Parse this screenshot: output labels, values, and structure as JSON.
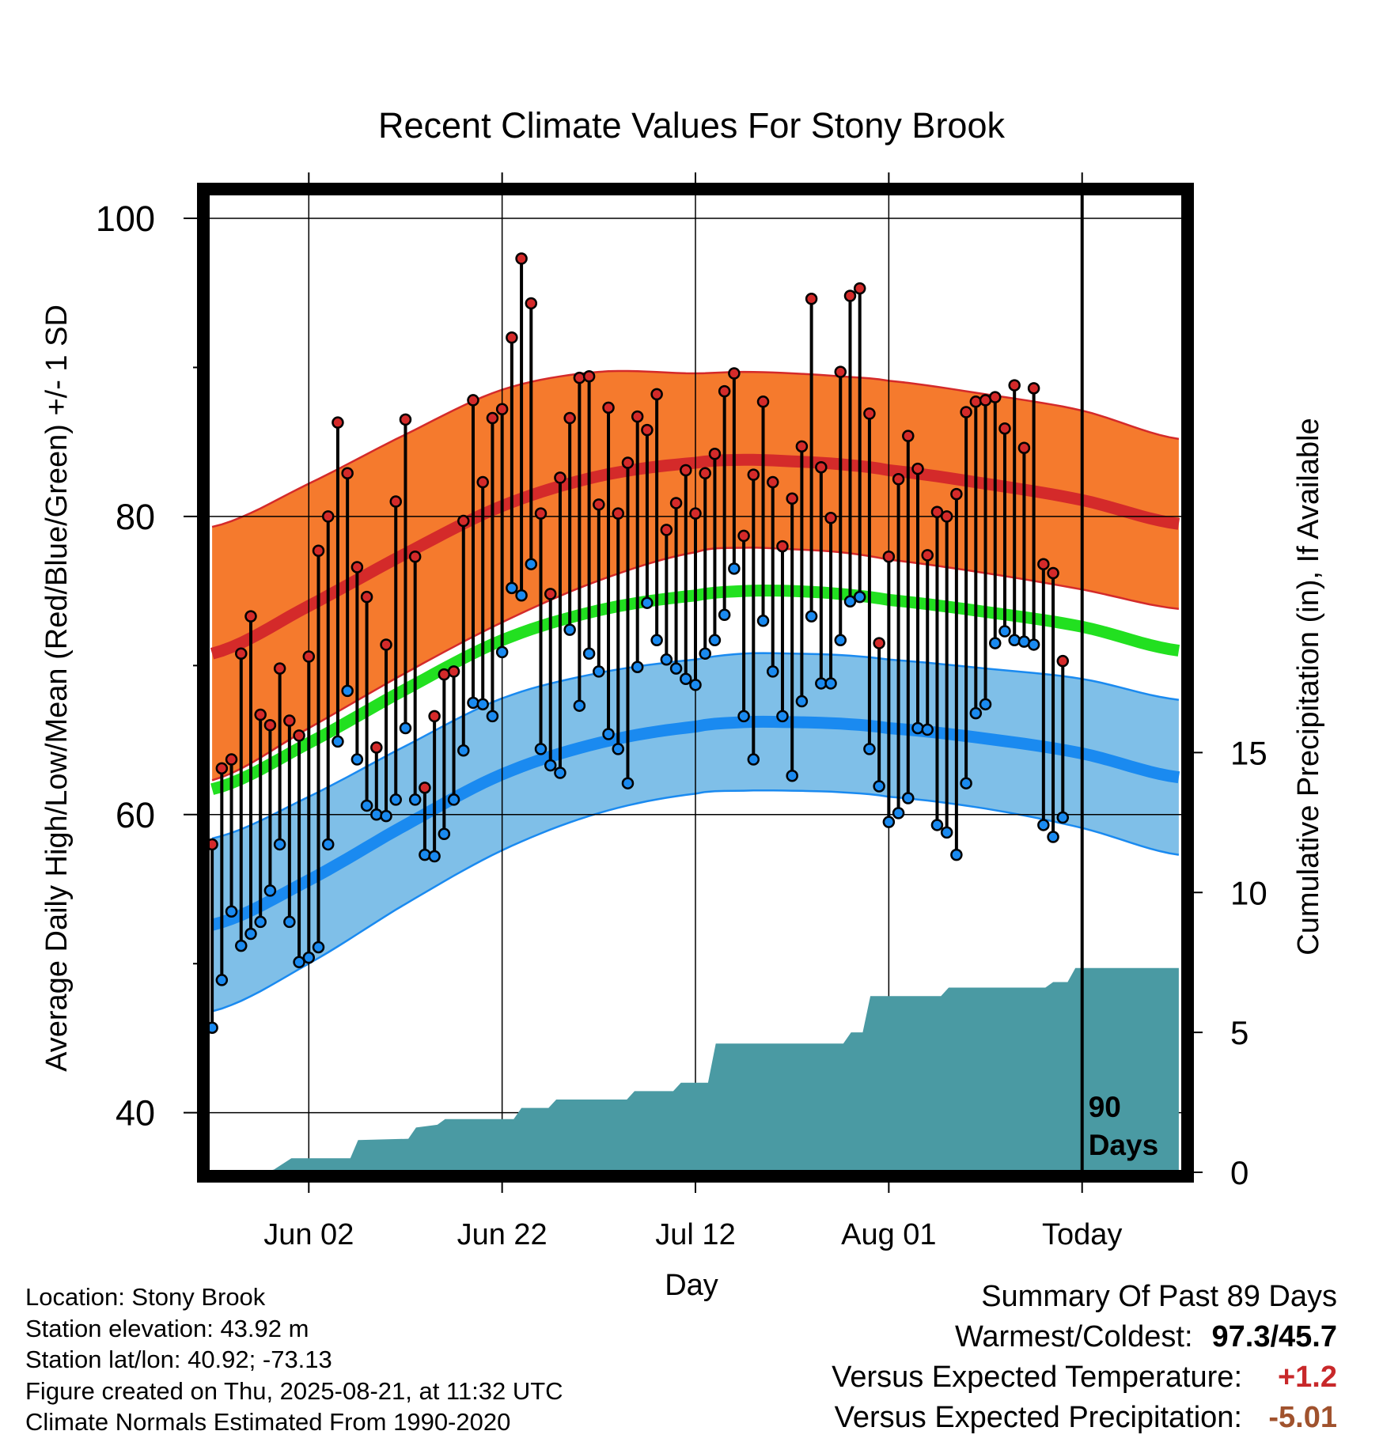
{
  "chart_data": {
    "type": "line",
    "title": "Recent Climate Values For Stony Brook",
    "xlabel": "Day",
    "ylabel": "Average Daily High/Low/Mean (Red/Blue/Green) +/- 1 SD",
    "y2label": "Cumulative Precipitation (in), If Available",
    "x_tick_labels": [
      "Jun 02",
      "Jun 22",
      "Jul 12",
      "Aug 01",
      "Today"
    ],
    "x_tick_days": [
      10,
      30,
      50,
      70,
      90
    ],
    "x_range_days": [
      -0.5,
      100.5
    ],
    "y_ticks": [
      40,
      60,
      80,
      100
    ],
    "ylim": [
      36,
      101.7
    ],
    "y2_ticks": [
      0,
      5,
      10,
      15
    ],
    "y2lim": [
      0,
      35
    ],
    "today_label": "90 Days",
    "colors": {
      "high_band": "#f57a2d",
      "high_mean": "#d42a2a",
      "low_band": "#7fbfe8",
      "low_mean": "#1a8af0",
      "mean": "#22e020",
      "precip": "#4a9aa3",
      "high_marker": "#d42a2a",
      "low_marker": "#1a8af0"
    },
    "normals_daily": {
      "day": [
        0,
        10,
        20,
        30,
        40,
        50,
        55,
        60,
        65,
        70,
        80,
        90,
        100
      ],
      "high_mean": [
        70.8,
        74,
        77.5,
        80.7,
        82.7,
        83.6,
        83.8,
        83.7,
        83.5,
        83.1,
        82.2,
        81.1,
        79.5
      ],
      "high_sd": [
        8.5,
        8.2,
        8,
        7.8,
        7,
        6,
        5.9,
        5.9,
        5.9,
        6,
        6,
        6,
        5.7
      ],
      "low_mean": [
        52.6,
        55.6,
        59.3,
        62.7,
        64.8,
        65.9,
        66.2,
        66.2,
        66.1,
        65.8,
        65.1,
        64.1,
        62.5
      ],
      "low_sd": [
        5.8,
        5.6,
        5.3,
        5.1,
        4.7,
        4.5,
        4.6,
        4.6,
        4.6,
        4.6,
        4.7,
        5,
        5.2
      ],
      "mean": [
        61.7,
        64.8,
        68.4,
        71.7,
        73.7,
        74.7,
        75,
        75,
        74.8,
        74.4,
        73.6,
        72.6,
        71
      ]
    },
    "observed": {
      "high": [
        58.0,
        63.1,
        63.7,
        70.8,
        73.3,
        66.7,
        66.0,
        69.8,
        66.3,
        65.3,
        70.6,
        77.7,
        80.0,
        86.3,
        82.9,
        76.6,
        74.6,
        64.5,
        71.4,
        81.0,
        86.5,
        77.3,
        61.8,
        66.6,
        69.4,
        69.6,
        79.7,
        87.8,
        82.3,
        86.6,
        87.2,
        92.0,
        97.3,
        94.3,
        80.2,
        74.8,
        82.6,
        86.6,
        89.3,
        89.4,
        80.8,
        87.3,
        80.2,
        83.6,
        86.7,
        85.8,
        88.2,
        79.1,
        80.9,
        83.1,
        80.2,
        82.9,
        84.2,
        88.4,
        89.6,
        78.7,
        82.8,
        87.7,
        82.3,
        78.0,
        81.2,
        84.7,
        94.6,
        83.3,
        79.9,
        89.7,
        94.8,
        95.3,
        86.9,
        71.5,
        77.3,
        82.5,
        85.4,
        83.2,
        77.4,
        80.3,
        80.0,
        81.5,
        87.0,
        87.7,
        87.8,
        88.0,
        85.9,
        88.8,
        84.6,
        88.6,
        76.8,
        76.2,
        70.3
      ],
      "low": [
        45.7,
        48.9,
        53.5,
        51.2,
        52.0,
        52.8,
        54.9,
        58.0,
        52.8,
        50.1,
        50.4,
        51.1,
        58.0,
        64.9,
        68.3,
        63.7,
        60.6,
        60.0,
        59.9,
        61.0,
        65.8,
        61.0,
        57.3,
        57.2,
        58.7,
        61.0,
        64.3,
        67.5,
        67.4,
        66.6,
        70.9,
        75.2,
        74.7,
        76.8,
        64.4,
        63.3,
        62.8,
        72.4,
        67.3,
        70.8,
        69.6,
        65.4,
        64.4,
        62.1,
        69.9,
        74.2,
        71.7,
        70.4,
        69.8,
        69.1,
        68.7,
        70.8,
        71.7,
        73.4,
        76.5,
        66.6,
        63.7,
        73.0,
        69.6,
        66.6,
        62.6,
        67.6,
        73.3,
        68.8,
        68.8,
        71.7,
        74.3,
        74.6,
        64.4,
        61.9,
        59.5,
        60.1,
        61.1,
        65.8,
        65.7,
        59.3,
        58.8,
        57.3,
        62.1,
        66.8,
        67.4,
        71.5,
        72.3,
        71.7,
        71.6,
        71.4,
        59.3,
        58.5,
        59.8
      ]
    },
    "precip_cumulative": {
      "day": [
        5.6,
        6.4,
        7.3,
        8.2,
        14.3,
        15.1,
        20.3,
        21.1,
        23.3,
        24.1,
        31.2,
        32.0,
        34.8,
        35.6,
        42.9,
        43.7,
        47.7,
        48.5,
        51.3,
        52.1,
        65.3,
        66.1,
        67.3,
        68.1,
        75.4,
        76.2,
        86.2,
        87.0,
        88.5,
        89.3
      ],
      "value": [
        0.03,
        0.1,
        0.3,
        0.5,
        0.5,
        1.15,
        1.2,
        1.6,
        1.7,
        1.9,
        1.9,
        2.3,
        2.3,
        2.6,
        2.6,
        2.9,
        2.9,
        3.2,
        3.2,
        4.6,
        4.6,
        5.0,
        5.0,
        6.3,
        6.3,
        6.6,
        6.6,
        6.8,
        6.8,
        7.3
      ],
      "last_day": 100,
      "last_value": 7.3
    }
  },
  "info": {
    "location": "Location: Stony Brook",
    "elevation": "Station elevation: 43.92 m",
    "latlon": "Station lat/lon: 40.92; -73.13",
    "created": "Figure created on Thu, 2025-08-21, at 11:32 UTC",
    "normals": "Climate Normals Estimated From 1990-2020"
  },
  "summary": {
    "title": "Summary Of Past 89 Days",
    "warmest_coldest_label": "Warmest/Coldest:",
    "warmest_coldest_value": "97.3/45.7",
    "temp_label": "Versus Expected Temperature:",
    "temp_value": "+1.2",
    "temp_color": "#c8282a",
    "precip_label": "Versus Expected Precipitation:",
    "precip_value": "-5.01",
    "precip_color": "#a0522d"
  }
}
